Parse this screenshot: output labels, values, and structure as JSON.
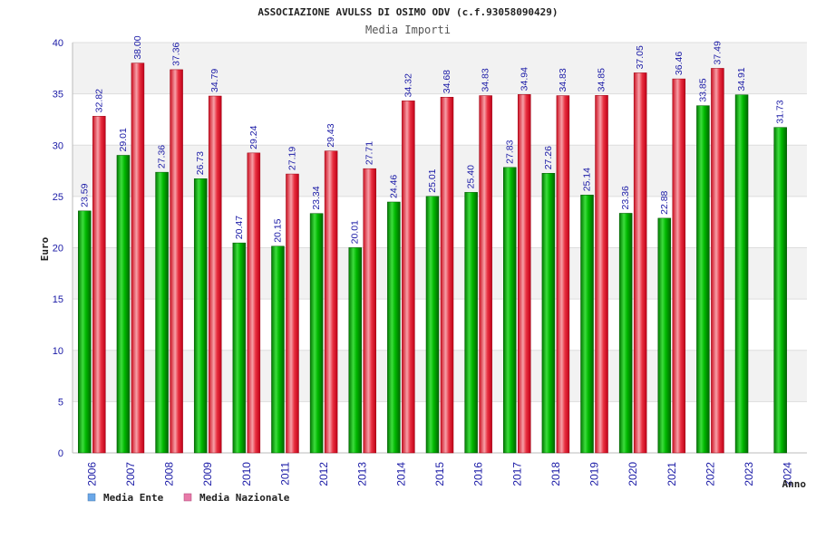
{
  "chart_data": {
    "type": "bar",
    "title": "ASSOCIAZIONE AVULSS DI OSIMO ODV (c.f.93058090429)",
    "subtitle": "Media Importi",
    "xlabel": "Anno",
    "ylabel": "Euro",
    "ylim": [
      0,
      40
    ],
    "yticks": [
      0,
      5,
      10,
      15,
      20,
      25,
      30,
      35,
      40
    ],
    "categories": [
      "2006",
      "2007",
      "2008",
      "2009",
      "2010",
      "2011",
      "2012",
      "2013",
      "2014",
      "2015",
      "2016",
      "2017",
      "2018",
      "2019",
      "2020",
      "2021",
      "2022",
      "2023",
      "2024"
    ],
    "series": [
      {
        "name": "Media Ente",
        "color": "#00aa00",
        "values": [
          23.59,
          29.01,
          27.36,
          26.73,
          20.47,
          20.15,
          23.34,
          20.01,
          24.46,
          25.01,
          25.4,
          27.83,
          27.26,
          25.14,
          23.36,
          22.88,
          33.85,
          34.91,
          31.73
        ],
        "labels": [
          "23.59",
          "29.01",
          "27.36",
          "26.73",
          "20.47",
          "20.15",
          "23.34",
          "20.01",
          "24.46",
          "25.01",
          "25.40",
          "27.83",
          "27.26",
          "25.14",
          "23.36",
          "22.88",
          "33.85",
          "34.91",
          "31.73"
        ]
      },
      {
        "name": "Media Nazionale",
        "color": "#ee2233",
        "values": [
          32.82,
          38.0,
          37.36,
          34.79,
          29.24,
          27.19,
          29.43,
          27.71,
          34.32,
          34.68,
          34.83,
          34.94,
          34.83,
          34.85,
          37.05,
          36.46,
          37.49,
          null,
          null
        ],
        "labels": [
          "32.82",
          "38.00",
          "37.36",
          "34.79",
          "29.24",
          "27.19",
          "29.43",
          "27.71",
          "34.32",
          "34.68",
          "34.83",
          "34.94",
          "34.83",
          "34.85",
          "37.05",
          "36.46",
          "37.49",
          null,
          null
        ]
      }
    ],
    "legend": {
      "position": "bottom-left",
      "items": [
        {
          "label": "Media Ente",
          "swatch": "#6aa7e8"
        },
        {
          "label": "Media Nazionale",
          "swatch": "#e87aa8"
        }
      ]
    },
    "grid": "horizontal-bands"
  }
}
